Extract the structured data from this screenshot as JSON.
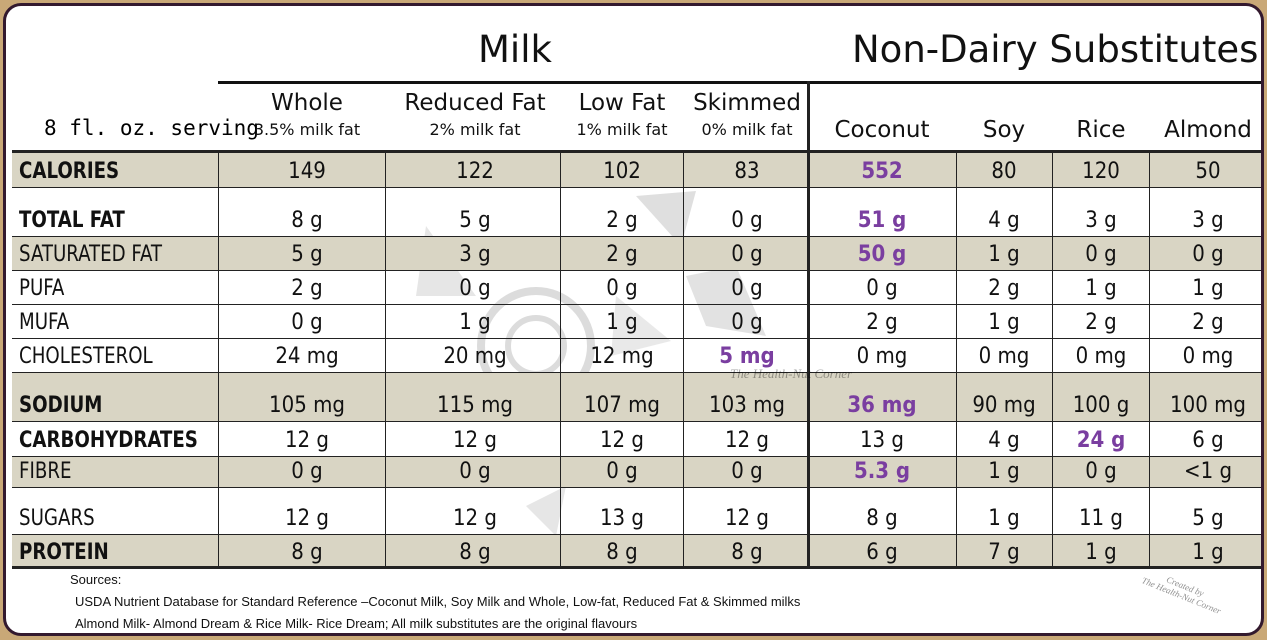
{
  "sections": {
    "milk": "Milk",
    "non_dairy": "Non-Dairy Substitutes"
  },
  "serving_label": "8 fl. oz. serving",
  "columns": [
    {
      "name": "Whole",
      "sub": "3.5%  milk fat"
    },
    {
      "name": "Reduced Fat",
      "sub": "2% milk fat"
    },
    {
      "name": "Low Fat",
      "sub": "1%  milk fat"
    },
    {
      "name": "Skimmed",
      "sub": "0%  milk fat"
    },
    {
      "name": "Coconut",
      "sub": ""
    },
    {
      "name": "Soy",
      "sub": ""
    },
    {
      "name": "Rice",
      "sub": ""
    },
    {
      "name": "Almond",
      "sub": ""
    }
  ],
  "rows": [
    {
      "label": "CALORIES",
      "values": [
        "149",
        "122",
        "102",
        "83",
        "552",
        "80",
        "120",
        "50"
      ]
    },
    {
      "label": "TOTAL FAT",
      "values": [
        "8 g",
        "5 g",
        "2 g",
        "0 g",
        "51 g",
        "4 g",
        "3 g",
        "3 g"
      ]
    },
    {
      "label": "SATURATED FAT",
      "values": [
        "5 g",
        "3 g",
        "2 g",
        "0 g",
        "50 g",
        "1 g",
        "0 g",
        "0 g"
      ]
    },
    {
      "label": "PUFA",
      "values": [
        "2 g",
        "0 g",
        "0 g",
        "0 g",
        "0 g",
        "2 g",
        "1 g",
        "1 g"
      ]
    },
    {
      "label": "MUFA",
      "values": [
        "0 g",
        "1 g",
        "1 g",
        "0 g",
        "2 g",
        "1 g",
        "2 g",
        "2 g"
      ]
    },
    {
      "label": "CHOLESTEROL",
      "values": [
        "24 mg",
        "20 mg",
        "12 mg",
        "5 mg",
        "0 mg",
        "0 mg",
        "0 mg",
        "0 mg"
      ]
    },
    {
      "label": "SODIUM",
      "values": [
        "105 mg",
        "115 mg",
        "107 mg",
        "103 mg",
        "36 mg",
        "90 mg",
        "100 g",
        "100 mg"
      ]
    },
    {
      "label": "CARBOHYDRATES",
      "values": [
        "12 g",
        "12 g",
        "12 g",
        "12 g",
        "13 g",
        "4 g",
        "24 g",
        "6 g"
      ]
    },
    {
      "label": "FIBRE",
      "values": [
        "0 g",
        "0 g",
        "0 g",
        "0 g",
        "5.3 g",
        "1 g",
        "0 g",
        "<1 g"
      ]
    },
    {
      "label": "SUGARS",
      "values": [
        "12 g",
        "12 g",
        "13 g",
        "12 g",
        "8 g",
        "1 g",
        "11 g",
        "5 g"
      ]
    },
    {
      "label": "PROTEIN",
      "values": [
        "8 g",
        "8 g",
        "8 g",
        "8 g",
        "6 g",
        "7 g",
        "1 g",
        "1 g"
      ]
    }
  ],
  "sources": {
    "heading": "Sources:",
    "line1": "USDA Nutrient Database for Standard Reference –Coconut Milk, Soy Milk and Whole, Low-fat, Reduced Fat & Skimmed milks",
    "line2": "Almond Milk- Almond Dream & Rice Milk- Rice Dream; All milk substitutes are the original flavours"
  },
  "watermark": "The Health-Nut Corner",
  "credit": {
    "line1": "Created by",
    "line2": "The Health-Nut Corner"
  },
  "colors": {
    "highlight": "#7a3ea0",
    "shade": "#d9d5c4",
    "frame": "#33192e",
    "outer": "#c9a877"
  }
}
